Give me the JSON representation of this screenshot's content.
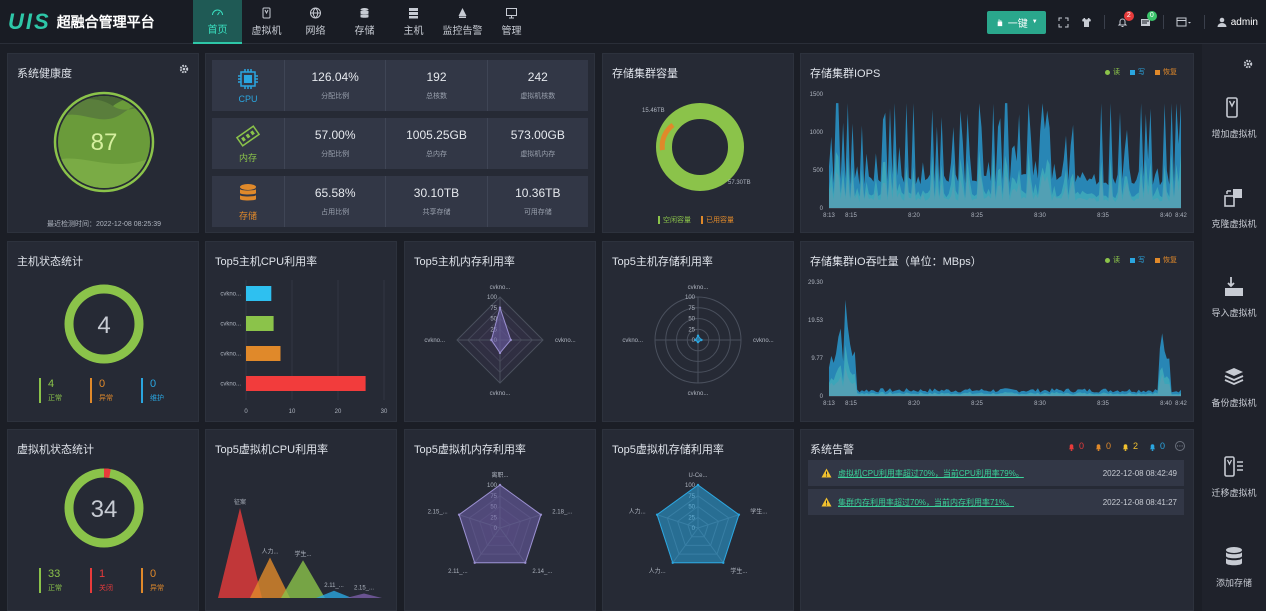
{
  "brand": {
    "logo": "UIS",
    "name": "超融合管理平台"
  },
  "nav": [
    {
      "label": "首页",
      "icon": "dashboard-icon",
      "active": true
    },
    {
      "label": "虚拟机",
      "icon": "vm-icon"
    },
    {
      "label": "网络",
      "icon": "globe-icon"
    },
    {
      "label": "存储",
      "icon": "database-icon"
    },
    {
      "label": "主机",
      "icon": "server-icon"
    },
    {
      "label": "监控告警",
      "icon": "alarm-icon"
    },
    {
      "label": "管理",
      "icon": "monitor-icon"
    }
  ],
  "toolbar": {
    "onekey": "一键",
    "alerts_badge": "2",
    "msg_badge": "0",
    "user": "admin"
  },
  "health": {
    "title": "系统健康度",
    "score": "87",
    "last_check": "最近检测时间：2022-12-08 08:25:39"
  },
  "resources": [
    {
      "name": "CPU",
      "icon": "cpu-icon",
      "cells": [
        {
          "v": "126.04%",
          "l": "分配比例"
        },
        {
          "v": "192",
          "l": "总核数"
        },
        {
          "v": "242",
          "l": "虚拟机核数"
        }
      ]
    },
    {
      "name": "内存",
      "icon": "memory-icon",
      "cells": [
        {
          "v": "57.00%",
          "l": "分配比例"
        },
        {
          "v": "1005.25GB",
          "l": "总内存"
        },
        {
          "v": "573.00GB",
          "l": "虚拟机内存"
        }
      ]
    },
    {
      "name": "存储",
      "icon": "storage-icon",
      "cells": [
        {
          "v": "65.58%",
          "l": "占用比例"
        },
        {
          "v": "30.10TB",
          "l": "共享存储"
        },
        {
          "v": "10.36TB",
          "l": "可用存储"
        }
      ]
    }
  ],
  "storage_capacity": {
    "title": "存储集群容量",
    "free_label": "空闲容量",
    "used_label": "已用容量",
    "free_value": "57.30TB",
    "used_value": "15.46TB",
    "colors": {
      "free": "#8bc34a",
      "used": "#e0892a"
    }
  },
  "iops": {
    "title": "存储集群IOPS",
    "legend": [
      "读",
      "写",
      "恢复"
    ],
    "yticks": [
      "1500",
      "1000",
      "500",
      "0"
    ],
    "xticks": [
      "8:13",
      "8:15",
      "8:20",
      "8:25",
      "8:30",
      "8:35",
      "8:40",
      "8:42"
    ]
  },
  "io_throughput": {
    "title": "存储集群IO吞吐量（单位：MBps）",
    "legend": [
      "读",
      "写",
      "恢复"
    ],
    "yticks": [
      "29.30",
      "19.53",
      "9.77",
      "0"
    ],
    "xticks": [
      "8:13",
      "8:15",
      "8:20",
      "8:25",
      "8:30",
      "8:35",
      "8:40",
      "8:42"
    ]
  },
  "host_status": {
    "title": "主机状态统计",
    "total": "4",
    "counts": [
      {
        "v": "4",
        "l": "正常",
        "color": "#8bc34a"
      },
      {
        "v": "0",
        "l": "异常",
        "color": "#e0892a"
      },
      {
        "v": "0",
        "l": "维护",
        "color": "#2aa6e0"
      }
    ]
  },
  "vm_status": {
    "title": "虚拟机状态统计",
    "total": "34",
    "counts": [
      {
        "v": "33",
        "l": "正常",
        "color": "#8bc34a"
      },
      {
        "v": "1",
        "l": "关闭",
        "color": "#e83b3b"
      },
      {
        "v": "0",
        "l": "异常",
        "color": "#e0892a"
      }
    ]
  },
  "top5_host_cpu": {
    "title": "Top5主机CPU利用率"
  },
  "top5_host_mem": {
    "title": "Top5主机内存利用率"
  },
  "top5_host_storage": {
    "title": "Top5主机存储利用率"
  },
  "top5_vm_cpu": {
    "title": "Top5虚拟机CPU利用率"
  },
  "top5_vm_mem": {
    "title": "Top5虚拟机内存利用率"
  },
  "top5_vm_storage": {
    "title": "Top5虚拟机存储利用率"
  },
  "alarms": {
    "title": "系统告警",
    "counters": [
      {
        "v": "0",
        "color": "#e83b3b"
      },
      {
        "v": "0",
        "color": "#e0892a"
      },
      {
        "v": "2",
        "color": "#f2c12e"
      },
      {
        "v": "0",
        "color": "#2aa6e0"
      }
    ],
    "items": [
      {
        "msg": "虚拟机CPU利用率超过70%，当前CPU利用率79%。",
        "time": "2022-12-08 08:42:49"
      },
      {
        "msg": "集群内存利用率超过70%，当前内存利用率71%。",
        "time": "2022-12-08 08:41:27"
      }
    ]
  },
  "rightbar": [
    {
      "label": "增加虚拟机",
      "icon": "add-vm-icon"
    },
    {
      "label": "克隆虚拟机",
      "icon": "clone-vm-icon"
    },
    {
      "label": "导入虚拟机",
      "icon": "import-vm-icon"
    },
    {
      "label": "备份虚拟机",
      "icon": "backup-vm-icon"
    },
    {
      "label": "迁移虚拟机",
      "icon": "migrate-vm-icon"
    },
    {
      "label": "添加存储",
      "icon": "add-storage-icon"
    }
  ],
  "chart_data": [
    {
      "type": "bar",
      "title": "Top5主机CPU利用率",
      "categories": [
        "cvkno...",
        "cvkno...",
        "cvkno...",
        "cvkno..."
      ],
      "values": [
        5.5,
        6,
        7.5,
        26
      ],
      "colors": [
        "#2ec0f0",
        "#8bc34a",
        "#e0892a",
        "#f23c3c"
      ],
      "xlim": [
        0,
        30
      ],
      "xticks": [
        "0",
        "10",
        "20",
        "30"
      ]
    },
    {
      "type": "radar",
      "title": "Top5主机内存利用率",
      "axes": [
        "cvkno...",
        "cvkno...",
        "cvkno...",
        "cvkno..."
      ],
      "values": [
        75,
        25,
        30,
        20
      ],
      "ticks": [
        "100",
        "75",
        "50",
        "25",
        "0"
      ]
    },
    {
      "type": "radar",
      "title": "Top5主机存储利用率",
      "axes": [
        "cvkno...",
        "cvkno...",
        "cvkno...",
        "cvkno..."
      ],
      "values": [
        10,
        8,
        5,
        6
      ],
      "ticks": [
        "100",
        "75",
        "50",
        "25",
        "0"
      ]
    },
    {
      "type": "area",
      "title": "Top5虚拟机CPU利用率",
      "categories": [
        "征案",
        "人力...",
        "学生...",
        "2.11_...",
        "2.15_..."
      ],
      "values": [
        100,
        45,
        42,
        8,
        5
      ],
      "colors": [
        "#e83b3b",
        "#e0892a",
        "#8bc34a",
        "#2aa6e0",
        "#7b5ea7"
      ]
    },
    {
      "type": "radar",
      "title": "Top5虚拟机内存利用率",
      "axes": [
        "离职...",
        "2.18_...",
        "2.14_...",
        "2.11_...",
        "2.15_..."
      ],
      "values": [
        100,
        100,
        100,
        100,
        100
      ],
      "ticks": [
        "100",
        "75",
        "50",
        "25",
        "0"
      ]
    },
    {
      "type": "radar",
      "title": "Top5虚拟机存储利用率",
      "axes": [
        "U-Ce...",
        "学生...",
        "学生...",
        "人力...",
        "人力..."
      ],
      "values": [
        100,
        100,
        100,
        100,
        100
      ],
      "ticks": [
        "100",
        "75",
        "50",
        "25",
        "0"
      ]
    }
  ]
}
